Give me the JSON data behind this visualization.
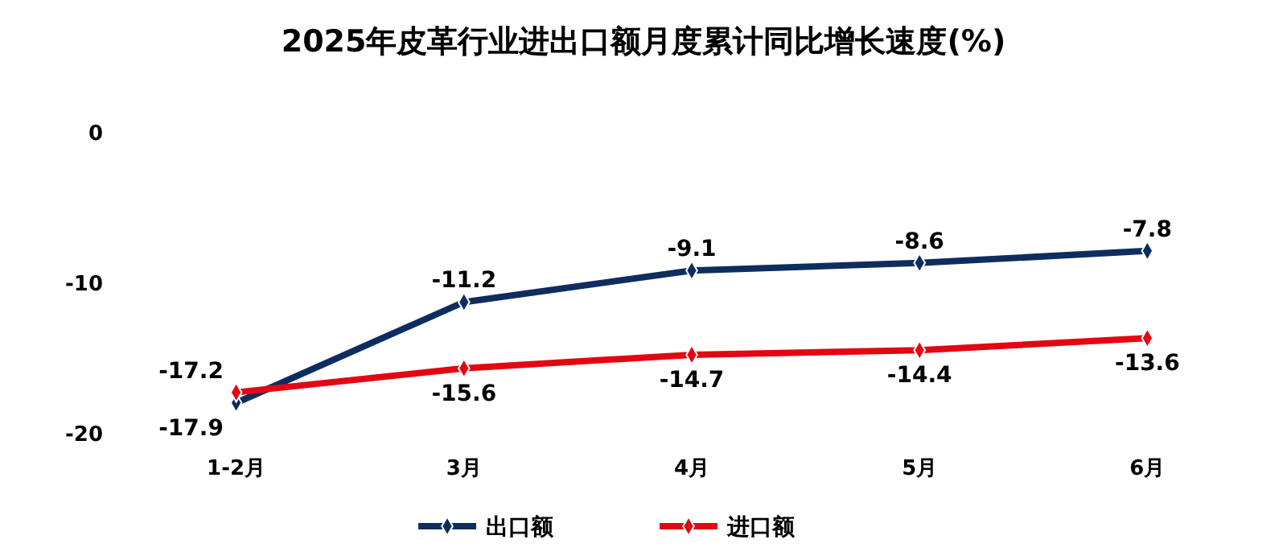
{
  "chart_data": {
    "type": "line",
    "title": "2025年皮革行业进出口额月度累计同比增长速度(%)",
    "categories": [
      "1-2月",
      "3月",
      "4月",
      "5月",
      "6月"
    ],
    "series": [
      {
        "name": "出口额",
        "color": "#0e2d5f",
        "values": [
          -17.9,
          -11.2,
          -9.1,
          -8.6,
          -7.8
        ]
      },
      {
        "name": "进口额",
        "color": "#e30613",
        "values": [
          -17.2,
          -15.6,
          -14.7,
          -14.4,
          -13.6
        ]
      }
    ],
    "ylim": [
      -20,
      0
    ],
    "yticks": [
      -20,
      -10,
      0
    ],
    "grid": false,
    "legend": "bottom",
    "marker": "diamond",
    "line_style": "solid",
    "data_labels": true
  }
}
